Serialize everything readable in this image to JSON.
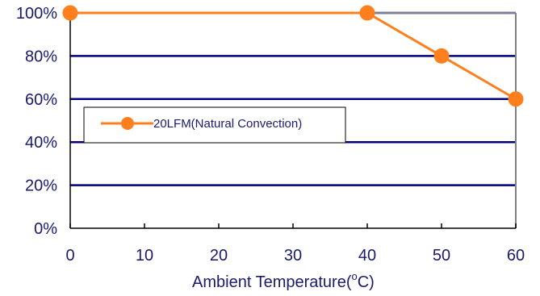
{
  "chart_data": {
    "type": "line",
    "title": "",
    "xlabel": "Ambient Temperature(°C)",
    "xlabel_main": "Ambient Temperature(",
    "xlabel_sup": "o",
    "xlabel_tail": "C)",
    "ylabel": "",
    "x": [
      0,
      40,
      50,
      60
    ],
    "series": [
      {
        "name": "20LFM(Natural Convection)",
        "values": [
          100,
          100,
          80,
          60
        ],
        "color": "#ff7f1e"
      }
    ],
    "xlim": [
      0,
      60
    ],
    "ylim": [
      0,
      100
    ],
    "xticks": [
      0,
      10,
      20,
      30,
      40,
      50,
      60
    ],
    "yticks": [
      0,
      20,
      40,
      60,
      80,
      100
    ],
    "xtick_labels": [
      "0",
      "10",
      "20",
      "30",
      "40",
      "50",
      "60"
    ],
    "ytick_labels": [
      "0%",
      "20%",
      "40%",
      "60%",
      "80%",
      "100%"
    ],
    "grid": "horizontal",
    "gridline_color": "#000080",
    "legend_placement": "left, middle"
  }
}
